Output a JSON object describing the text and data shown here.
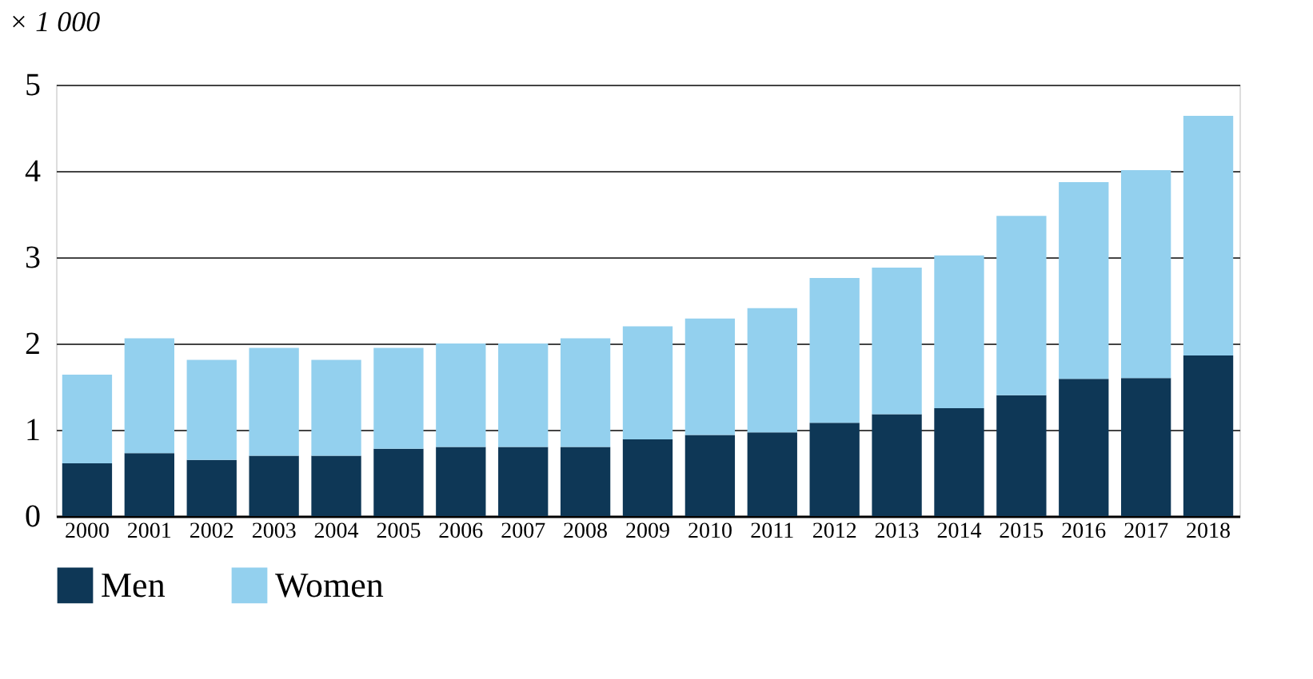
{
  "chart_data": {
    "type": "bar",
    "stacked": true,
    "ylabel": "× 1 000",
    "categories": [
      "2000",
      "2001",
      "2002",
      "2003",
      "2004",
      "2005",
      "2006",
      "2007",
      "2008",
      "2009",
      "2010",
      "2011",
      "2012",
      "2013",
      "2014",
      "2015",
      "2016",
      "2017",
      "2018"
    ],
    "series": [
      {
        "name": "Men",
        "color": "#0e3756",
        "values": [
          0.61,
          0.73,
          0.65,
          0.7,
          0.7,
          0.78,
          0.8,
          0.8,
          0.8,
          0.89,
          0.94,
          0.97,
          1.08,
          1.18,
          1.25,
          1.4,
          1.59,
          1.6,
          1.86
        ]
      },
      {
        "name": "Women",
        "color": "#93d0ee",
        "values": [
          1.03,
          1.33,
          1.16,
          1.25,
          1.11,
          1.17,
          1.2,
          1.2,
          1.26,
          1.31,
          1.35,
          1.44,
          1.68,
          1.7,
          1.77,
          2.08,
          2.28,
          2.41,
          2.78
        ]
      }
    ],
    "ylim": [
      0,
      5
    ],
    "yticks": [
      0,
      1,
      2,
      3,
      4,
      5
    ],
    "grid": "y",
    "legend": "bottom left"
  }
}
